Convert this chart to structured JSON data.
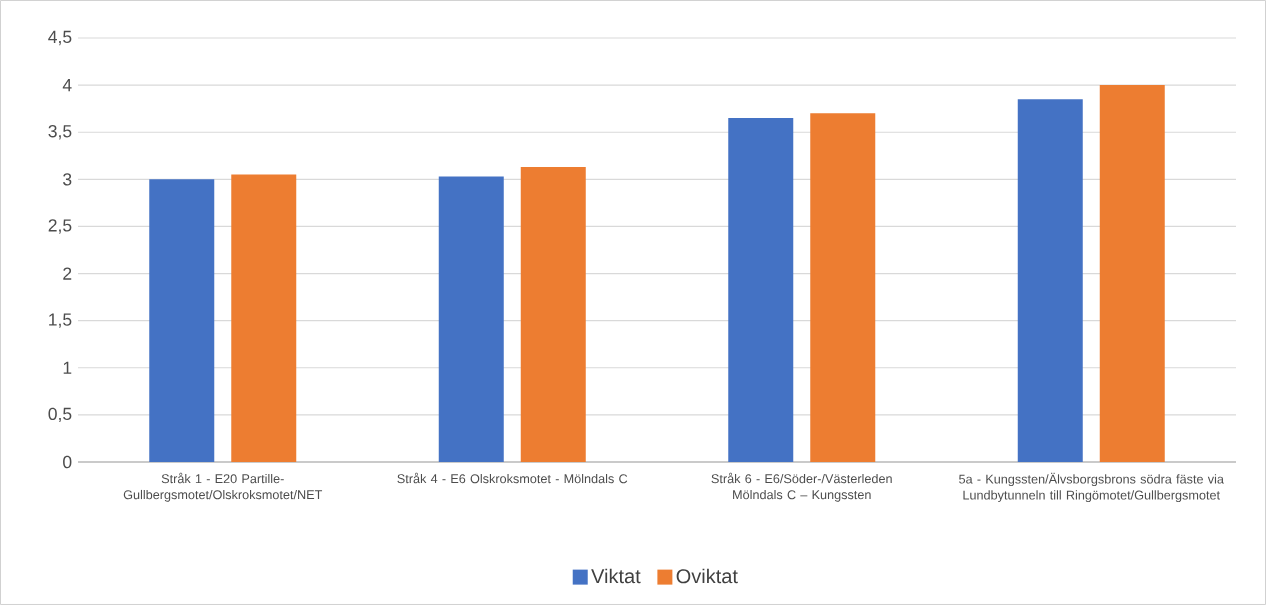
{
  "chart_data": {
    "type": "bar",
    "categories": [
      "Stråk 1  - E20 Partille-Gullbergsmotet/Olskroksmotet/NET",
      "Stråk 4 - E6 Olskroksmotet - Mölndals C",
      "Stråk 6 -  E6/Söder-/Västerleden Mölndals C – Kungssten",
      "5a - Kungssten/Älvsborgsbrons södra fäste via Lundbytunneln till Ringömotet/Gullbergsmotet"
    ],
    "series": [
      {
        "name": "Viktat",
        "color": "#4472c4",
        "values": [
          3.0,
          3.03,
          3.65,
          3.85
        ]
      },
      {
        "name": "Oviktat",
        "color": "#ed7d31",
        "values": [
          3.05,
          3.13,
          3.7,
          4.0
        ]
      }
    ],
    "ylim": [
      0,
      4.5
    ],
    "yticks": [
      0,
      {
        "value": 0.5,
        "label": "0,5"
      },
      1,
      {
        "value": 1.5,
        "label": "1,5"
      },
      2,
      {
        "value": 2.5,
        "label": "2,5"
      },
      3,
      {
        "value": 3.5,
        "label": "3,5"
      },
      4,
      {
        "value": 4.5,
        "label": "4,5"
      }
    ],
    "grid": "y",
    "legend": "bottom"
  }
}
